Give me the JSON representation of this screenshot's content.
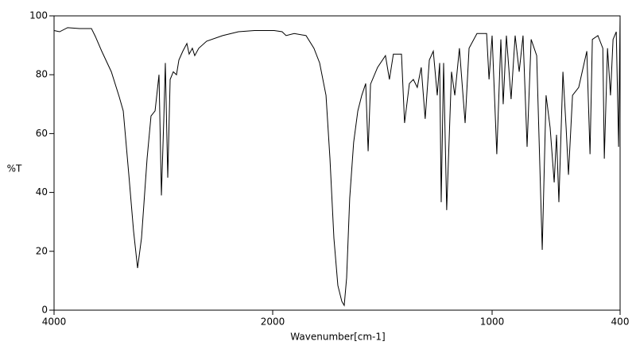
{
  "chart_data": {
    "type": "line",
    "ylabel": "%T",
    "xlabel": "Wavenumber[cm-1]",
    "color": "#000000",
    "xlim": [
      4000,
      400
    ],
    "xticks": [
      4000,
      2000,
      1000,
      400
    ],
    "ylim": [
      0,
      100
    ],
    "yticks": [
      0,
      20,
      40,
      60,
      80,
      100
    ],
    "x": [
      4000,
      3949,
      3876,
      3767,
      3658,
      3622,
      3564,
      3476,
      3404,
      3367,
      3316,
      3273,
      3236,
      3200,
      3149,
      3113,
      3076,
      3040,
      3018,
      2996,
      2982,
      2960,
      2938,
      2909,
      2880,
      2858,
      2822,
      2785,
      2764,
      2735,
      2713,
      2676,
      2604,
      2458,
      2313,
      2167,
      1993,
      1957,
      1939,
      1902,
      1848,
      1812,
      1786,
      1757,
      1739,
      1721,
      1703,
      1685,
      1674,
      1663,
      1649,
      1631,
      1612,
      1594,
      1576,
      1565,
      1554,
      1522,
      1486,
      1468,
      1450,
      1413,
      1399,
      1377,
      1359,
      1341,
      1323,
      1305,
      1286,
      1268,
      1250,
      1239,
      1232,
      1221,
      1207,
      1185,
      1170,
      1149,
      1123,
      1105,
      1069,
      1025,
      1014,
      1000,
      978,
      959,
      948,
      933,
      911,
      892,
      873,
      855,
      836,
      817,
      791,
      765,
      747,
      728,
      709,
      698,
      687,
      668,
      653,
      642,
      623,
      594,
      556,
      541,
      530,
      504,
      481,
      474,
      459,
      445,
      433,
      418,
      407,
      400
    ],
    "values": [
      95,
      94.6,
      96,
      95.7,
      95.7,
      93,
      88,
      81,
      72.5,
      67.7,
      46,
      27,
      14.3,
      24.5,
      51.5,
      66,
      67.7,
      80,
      39,
      65,
      84,
      45,
      78.4,
      81,
      80,
      85,
      88,
      90.6,
      87,
      89,
      86.5,
      89,
      91.4,
      93.3,
      94.6,
      95,
      95,
      94.6,
      93.3,
      94,
      93.3,
      89,
      84,
      73,
      51.5,
      24.5,
      8.4,
      3,
      1.6,
      11,
      38,
      57,
      67.7,
      73,
      77,
      54,
      76.8,
      82.5,
      86.5,
      78.4,
      87,
      87,
      63.6,
      77,
      78.4,
      75.7,
      82.5,
      65,
      85,
      88,
      73,
      84,
      36.7,
      84,
      34,
      81,
      73,
      89,
      63.6,
      89,
      94,
      94,
      78.4,
      93.3,
      53,
      92,
      70,
      93.3,
      71.7,
      93.3,
      81,
      93.3,
      55.5,
      92,
      86.5,
      20.5,
      73,
      62,
      43.4,
      59.6,
      36.7,
      81,
      62,
      46,
      73,
      75.7,
      88,
      53,
      92,
      93.3,
      89,
      51.5,
      89,
      73,
      92,
      94.6,
      55.5,
      100
    ]
  }
}
